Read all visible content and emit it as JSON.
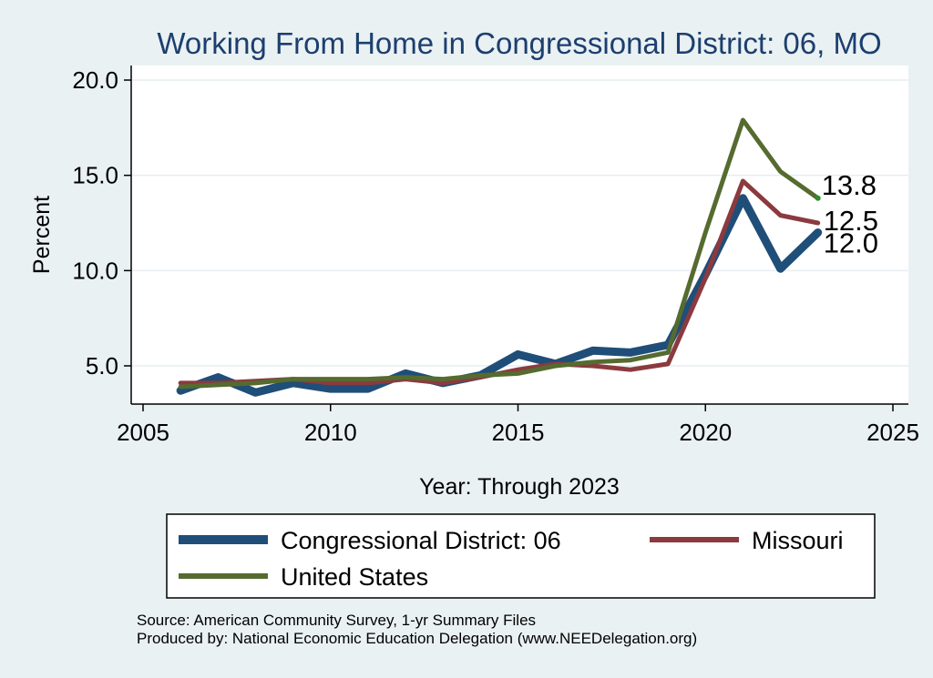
{
  "chart_data": {
    "type": "line",
    "title": "Working From Home in Congressional District: 06, MO",
    "xlabel": "Year: Through 2023",
    "ylabel": "Percent",
    "xlim": [
      2005,
      2025
    ],
    "ylim": [
      3.0,
      20.8
    ],
    "xticks": [
      "2005",
      "2010",
      "2015",
      "2020",
      "2025"
    ],
    "yticks": [
      "5.0",
      "10.0",
      "15.0",
      "20.0"
    ],
    "grid": true,
    "legend_position": "bottom",
    "x": [
      2006,
      2007,
      2008,
      2009,
      2010,
      2011,
      2012,
      2013,
      2014,
      2015,
      2016,
      2017,
      2018,
      2019,
      2020,
      2021,
      2022,
      2023
    ],
    "series": [
      {
        "name": "Congressional District: 06",
        "color": "#1f4e79",
        "width": 9,
        "values": [
          3.7,
          4.4,
          3.6,
          4.1,
          3.8,
          3.8,
          4.6,
          4.1,
          4.5,
          5.6,
          5.1,
          5.8,
          5.7,
          6.1,
          9.8,
          13.8,
          10.1,
          12.0
        ],
        "end_label": "12.0"
      },
      {
        "name": "Missouri",
        "color": "#8b3a3f",
        "width": 5,
        "values": [
          4.1,
          4.1,
          4.2,
          4.3,
          4.1,
          4.1,
          4.3,
          4.1,
          4.4,
          4.8,
          5.1,
          5.0,
          4.8,
          5.1,
          9.6,
          14.7,
          12.9,
          12.5
        ],
        "end_label": "12.5"
      },
      {
        "name": "United States",
        "color": "#556b2f",
        "width": 5,
        "values": [
          3.9,
          4.0,
          4.1,
          4.3,
          4.3,
          4.3,
          4.4,
          4.3,
          4.5,
          4.6,
          5.0,
          5.2,
          5.3,
          5.7,
          12.0,
          17.9,
          15.2,
          13.8
        ],
        "end_label": "13.8"
      }
    ]
  },
  "footer": {
    "source": "Source: American Community Survey, 1-yr Summary Files",
    "produced": "Produced by: National Economic Education Delegation (www.NEEDelegation.org)"
  }
}
